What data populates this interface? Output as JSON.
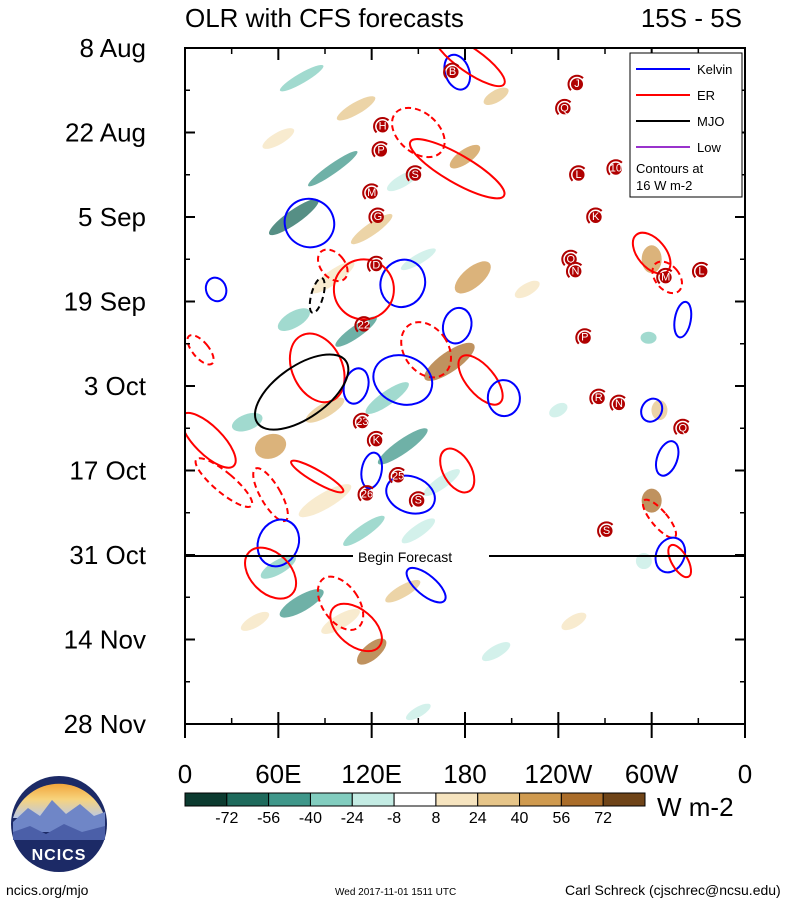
{
  "chart_data": {
    "type": "heatmap",
    "title": "OLR with CFS forecasts",
    "region": "15S - 5S",
    "x_axis": {
      "ticks": [
        {
          "lon": 0,
          "label": "0"
        },
        {
          "lon": 60,
          "label": "60E"
        },
        {
          "lon": 120,
          "label": "120E"
        },
        {
          "lon": 180,
          "label": "180"
        },
        {
          "lon": 240,
          "label": "120W"
        },
        {
          "lon": 300,
          "label": "60W"
        },
        {
          "lon": 360,
          "label": "0"
        }
      ],
      "range": [
        0,
        360
      ]
    },
    "y_axis": {
      "ticks": [
        {
          "day": 0,
          "label": "8 Aug"
        },
        {
          "day": 14,
          "label": "22 Aug"
        },
        {
          "day": 28,
          "label": "5 Sep"
        },
        {
          "day": 42,
          "label": "19 Sep"
        },
        {
          "day": 56,
          "label": "3 Oct"
        },
        {
          "day": 70,
          "label": "17 Oct"
        },
        {
          "day": 84,
          "label": "31 Oct"
        },
        {
          "day": 98,
          "label": "14 Nov"
        },
        {
          "day": 112,
          "label": "28 Nov"
        }
      ],
      "range": [
        "8 Aug",
        "28 Nov"
      ]
    },
    "forecast_line": {
      "date": "31 Oct",
      "label": "Begin Forecast"
    },
    "colorbar": {
      "labels": [
        "-72",
        "-56",
        "-40",
        "-24",
        "-8",
        "8",
        "24",
        "40",
        "56",
        "72"
      ],
      "unit": "W m-2",
      "colors": [
        "#0c3b30",
        "#1e6a5c",
        "#3f978a",
        "#82cdbf",
        "#c4ece4",
        "#ffffff",
        "#f6e4bf",
        "#e6c589",
        "#cf9a4f",
        "#aa6d2a",
        "#6f4418"
      ]
    },
    "legend": [
      {
        "name": "Kelvin",
        "color": "#0000ff"
      },
      {
        "name": "ER",
        "color": "#ff0000"
      },
      {
        "name": "MJO",
        "color": "#000000"
      },
      {
        "name": "Low",
        "color": "#9932cc"
      }
    ],
    "contour_note": [
      "Contours at",
      "16 W m-2"
    ],
    "storm_labels": [
      "B",
      "J",
      "Q",
      "H",
      "P",
      "S",
      "M",
      "G",
      "D",
      "22",
      "23",
      "K",
      "25",
      "26",
      "S",
      "L",
      "K",
      "Q",
      "N",
      "M",
      "L",
      "P",
      "R",
      "N",
      "Q",
      "S",
      "10"
    ]
  },
  "logo": {
    "text": "NCICS"
  },
  "footer": {
    "left": "ncics.org/mjo",
    "center": "Wed 2017-11-01 1511 UTC",
    "right": "Carl Schreck (cjschrec@ncsu.edu)"
  }
}
